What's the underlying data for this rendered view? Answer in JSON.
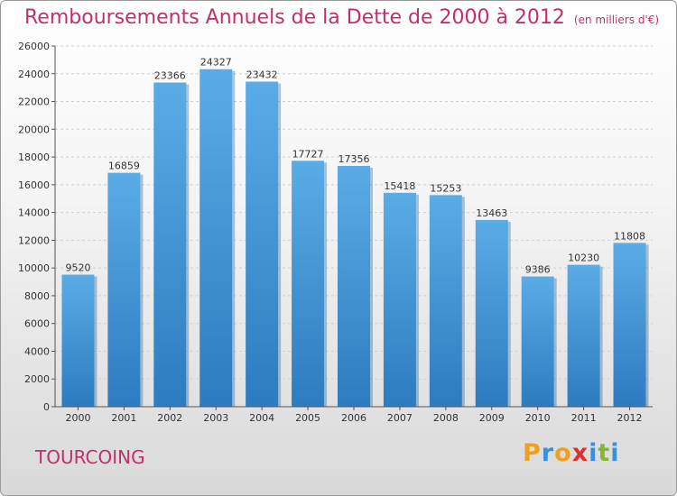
{
  "title": "Remboursements Annuels de la Dette de 2000 à 2012",
  "subtitle": "(en milliers d'€)",
  "city": "TOURCOING",
  "logo": {
    "letters": [
      "P",
      "r",
      "o",
      "x",
      "i",
      "t",
      "i"
    ],
    "colors": [
      "#f0a020",
      "#3a8fd8",
      "#f0a020",
      "#e0302a",
      "#3a8fd8",
      "#80b830",
      "#3a8fd8"
    ]
  },
  "colors": {
    "bar_light": "#5aace6",
    "bar_dark": "#2d7bc0",
    "title": "#c0306e",
    "grid": "#cfcfcf"
  },
  "chart_data": {
    "type": "bar",
    "categories": [
      "2000",
      "2001",
      "2002",
      "2003",
      "2004",
      "2005",
      "2006",
      "2007",
      "2008",
      "2009",
      "2010",
      "2011",
      "2012"
    ],
    "values": [
      9520,
      16859,
      23366,
      24327,
      23432,
      17727,
      17356,
      15418,
      15253,
      13463,
      9386,
      10230,
      11808
    ],
    "ylim": [
      0,
      26000
    ],
    "yticks": [
      0,
      2000,
      4000,
      6000,
      8000,
      10000,
      12000,
      14000,
      16000,
      18000,
      20000,
      22000,
      24000,
      26000
    ],
    "grid": true,
    "data_labels": true
  }
}
